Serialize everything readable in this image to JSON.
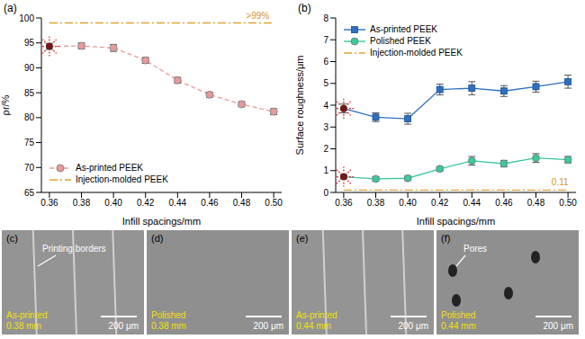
{
  "chart_data": [
    {
      "type": "line",
      "panel": "(a)",
      "x_label": "Infill spacings/mm",
      "y_label": "ρr/%",
      "x": [
        0.36,
        0.38,
        0.4,
        0.42,
        0.44,
        0.46,
        0.48,
        0.5
      ],
      "xlim": [
        0.355,
        0.505
      ],
      "xticks": [
        0.36,
        0.38,
        {
          "value": 0.4,
          "label": "0.40"
        },
        0.42,
        0.44,
        0.46,
        0.48,
        {
          "value": 0.5,
          "label": "0.50"
        }
      ],
      "ylim": [
        65,
        100
      ],
      "yticks": [
        65,
        70,
        75,
        80,
        85,
        90,
        95,
        100
      ],
      "legend": "lower left",
      "series": [
        {
          "name": "As-printed PEEK",
          "color": "#e89a9a",
          "marker": "circle",
          "line_style": "dashed",
          "values": [
            94.3,
            94.4,
            94.0,
            91.5,
            87.5,
            84.6,
            82.7,
            81.2
          ],
          "error": [
            0.6,
            0.6,
            0.7,
            0.6,
            0.6,
            0.5,
            0.5,
            0.6
          ]
        },
        {
          "name": "Injection-molded PEEK",
          "color": "#e3a232",
          "line_style": "dashdot",
          "values": [
            99,
            99,
            99,
            99,
            99,
            99,
            99,
            99
          ]
        }
      ],
      "annotations": [
        {
          "text": ">99%",
          "x": 0.49,
          "y": 99
        }
      ]
    },
    {
      "type": "line",
      "panel": "(b)",
      "x_label": "Infill spacings/mm",
      "y_label": "Surface roughness/μm",
      "x": [
        0.36,
        0.38,
        0.4,
        0.42,
        0.44,
        0.46,
        0.48,
        0.5
      ],
      "xlim": [
        0.355,
        0.505
      ],
      "xticks": [
        0.36,
        0.38,
        {
          "value": 0.4,
          "label": "0.40"
        },
        0.42,
        0.44,
        0.46,
        0.48,
        {
          "value": 0.5,
          "label": "0.50"
        }
      ],
      "ylim": [
        0,
        8
      ],
      "yticks": [
        0,
        1,
        2,
        3,
        4,
        5,
        6,
        7,
        8
      ],
      "legend": "upper left",
      "series": [
        {
          "name": "As-printed PEEK",
          "color": "#2f6fc0",
          "marker": "square",
          "line_style": "solid",
          "values": [
            3.85,
            3.45,
            3.38,
            4.72,
            4.78,
            4.65,
            4.85,
            5.08
          ],
          "error": [
            0.2,
            0.2,
            0.25,
            0.25,
            0.3,
            0.25,
            0.25,
            0.3
          ]
        },
        {
          "name": "Polished PEEK",
          "color": "#3cc79c",
          "marker": "circle",
          "line_style": "solid",
          "values": [
            0.72,
            0.62,
            0.65,
            1.08,
            1.45,
            1.32,
            1.58,
            1.5
          ],
          "error": [
            0.1,
            0.1,
            0.1,
            0.1,
            0.2,
            0.15,
            0.2,
            0.15
          ]
        },
        {
          "name": "Injection-molded PEEK",
          "color": "#e3a232",
          "line_style": "dashdot",
          "values": [
            0.11,
            0.11,
            0.11,
            0.11,
            0.11,
            0.11,
            0.11,
            0.11
          ]
        }
      ],
      "annotations": [
        {
          "text": "0.11",
          "x": 0.495,
          "y": 0.11
        }
      ]
    }
  ],
  "images": [
    {
      "panel": "(c)",
      "label": [
        "As-printed",
        "0.38 mm"
      ],
      "scale_bar": "200 μm",
      "annotation": "Printing borders"
    },
    {
      "panel": "(d)",
      "label": [
        "Polished",
        "0.38 mm"
      ],
      "scale_bar": "200 μm"
    },
    {
      "panel": "(e)",
      "label": [
        "As-printed",
        "0.44 mm"
      ],
      "scale_bar": "200 μm"
    },
    {
      "panel": "(f)",
      "label": [
        "Polished",
        "0.44 mm"
      ],
      "scale_bar": "200 μm",
      "annotation": "Pores"
    }
  ]
}
